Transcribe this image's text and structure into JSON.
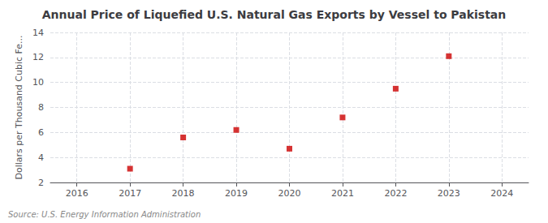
{
  "chart_data": {
    "type": "scatter",
    "title": "Annual Price of Liquefied U.S. Natural Gas Exports by Vessel to Pakistan",
    "ylabel": "Dollars per Thousand Cubic Fe...",
    "source": "Source: U.S. Energy Information Administration",
    "x": [
      2017,
      2018,
      2019,
      2020,
      2021,
      2022,
      2023
    ],
    "values": [
      3.1,
      5.6,
      6.2,
      4.7,
      7.2,
      9.5,
      12.1
    ],
    "color": "#cc0000",
    "marker": "square",
    "xlim": [
      2015.5,
      2024.5
    ],
    "xticks": [
      2016,
      2017,
      2018,
      2019,
      2020,
      2021,
      2022,
      2023,
      2024
    ],
    "ylim": [
      2,
      14
    ],
    "yticks": [
      2,
      4,
      6,
      8,
      10,
      12,
      14
    ],
    "grid": true
  }
}
